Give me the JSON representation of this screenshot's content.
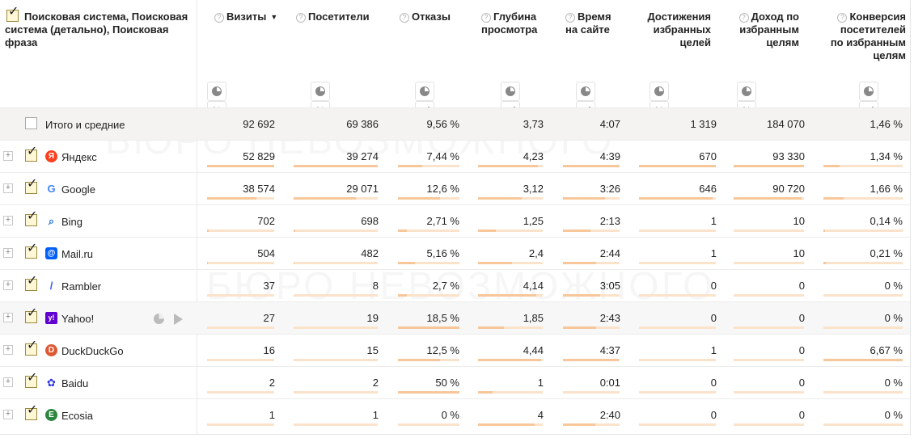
{
  "header": {
    "dimension_title": "Поисковая система, Поисковая система (детально), Поисковая фраза",
    "columns": [
      {
        "key": "visits",
        "label": "Визиты",
        "help": true,
        "sorted": true,
        "sort_glyph": "▼"
      },
      {
        "key": "visitors",
        "label": "Посетители",
        "help": true
      },
      {
        "key": "bounces",
        "label": "Отказы",
        "help": true
      },
      {
        "key": "depth",
        "label": "Глубина просмотра",
        "help": true
      },
      {
        "key": "time",
        "label": "Время на сайте",
        "help": true
      },
      {
        "key": "goals",
        "label": "Достижения избранных целей",
        "help": false
      },
      {
        "key": "revenue",
        "label": "Доход по избранным целям",
        "help": true
      },
      {
        "key": "conversion",
        "label": "Конверсия посетителей по избранным целям",
        "help": true
      }
    ],
    "percent_glyph": "%"
  },
  "rows": [
    {
      "label": "Итого и средние",
      "total": true,
      "checked": false,
      "values": [
        "92 692",
        "69 386",
        "9,56 %",
        "3,73",
        "4:07",
        "1 319",
        "184 070",
        "1,46 %"
      ]
    },
    {
      "label": "Яндекс",
      "icon": "yandex-icon",
      "icon_glyph": "Я",
      "icon_color": "#fc3f1d",
      "checked": true,
      "values": [
        "52 829",
        "39 274",
        "7,44 %",
        "4,23",
        "4:39",
        "670",
        "93 330",
        "1,34 %"
      ],
      "bars": [
        1.0,
        1.0,
        0.4,
        0.92,
        1.0,
        1.0,
        1.0,
        0.2
      ]
    },
    {
      "label": "Google",
      "icon": "google-icon",
      "icon_glyph": "G",
      "icon_color": "#4285f4",
      "checked": true,
      "values": [
        "38 574",
        "29 071",
        "12,6 %",
        "3,12",
        "3:26",
        "646",
        "90 720",
        "1,66 %"
      ],
      "bars": [
        0.73,
        0.74,
        0.68,
        0.68,
        0.74,
        0.96,
        0.97,
        0.25
      ]
    },
    {
      "label": "Bing",
      "icon": "bing-icon",
      "icon_glyph": "⌕",
      "icon_color": "#1a73e8",
      "checked": true,
      "values": [
        "702",
        "698",
        "2,71 %",
        "1,25",
        "2:13",
        "1",
        "10",
        "0,14 %"
      ],
      "bars": [
        0.02,
        0.02,
        0.15,
        0.27,
        0.48,
        0.0,
        0.0,
        0.02
      ]
    },
    {
      "label": "Mail.ru",
      "icon": "mailru-icon",
      "icon_glyph": "@",
      "icon_color": "#005ff9",
      "checked": true,
      "values": [
        "504",
        "482",
        "5,16 %",
        "2,4",
        "2:44",
        "1",
        "10",
        "0,21 %"
      ],
      "bars": [
        0.01,
        0.01,
        0.28,
        0.52,
        0.59,
        0.0,
        0.0,
        0.03
      ]
    },
    {
      "label": "Rambler",
      "icon": "rambler-icon",
      "icon_glyph": "/",
      "icon_color": "#315efb",
      "checked": true,
      "values": [
        "37",
        "8",
        "2,7 %",
        "4,14",
        "3:05",
        "0",
        "0",
        "0 %"
      ],
      "bars": [
        0.0,
        0.0,
        0.15,
        0.9,
        0.66,
        0.0,
        0.0,
        0.0
      ]
    },
    {
      "label": "Yahoo!",
      "icon": "yahoo-icon",
      "icon_glyph": "y!",
      "icon_color": "#6001d2",
      "checked": true,
      "hover": true,
      "values": [
        "27",
        "19",
        "18,5 %",
        "1,85",
        "2:43",
        "0",
        "0",
        "0 %"
      ],
      "bars": [
        0.0,
        0.0,
        1.0,
        0.4,
        0.58,
        0.0,
        0.0,
        0.0
      ]
    },
    {
      "label": "DuckDuckGo",
      "icon": "duckduckgo-icon",
      "icon_glyph": "D",
      "icon_color": "#de5833",
      "checked": true,
      "values": [
        "16",
        "15",
        "12,5 %",
        "4,44",
        "4:37",
        "1",
        "0",
        "6,67 %"
      ],
      "bars": [
        0.0,
        0.0,
        0.68,
        0.97,
        0.99,
        0.0,
        0.0,
        1.0
      ]
    },
    {
      "label": "Baidu",
      "icon": "baidu-icon",
      "icon_glyph": "✿",
      "icon_color": "#2932e1",
      "checked": true,
      "values": [
        "2",
        "2",
        "50 %",
        "1",
        "0:01",
        "0",
        "0",
        "0 %"
      ],
      "bars": [
        0.0,
        0.0,
        1.0,
        0.22,
        0.0,
        0.0,
        0.0,
        0.0
      ]
    },
    {
      "label": "Ecosia",
      "icon": "ecosia-icon",
      "icon_glyph": "E",
      "icon_color": "#2e8540",
      "checked": true,
      "values": [
        "1",
        "1",
        "0 %",
        "4",
        "2:40",
        "0",
        "0",
        "0 %"
      ],
      "bars": [
        0.0,
        0.0,
        0.0,
        0.87,
        0.57,
        0.0,
        0.0,
        0.0
      ]
    }
  ],
  "watermark": "БЮРО НЕВОЗМОЖНОГО"
}
